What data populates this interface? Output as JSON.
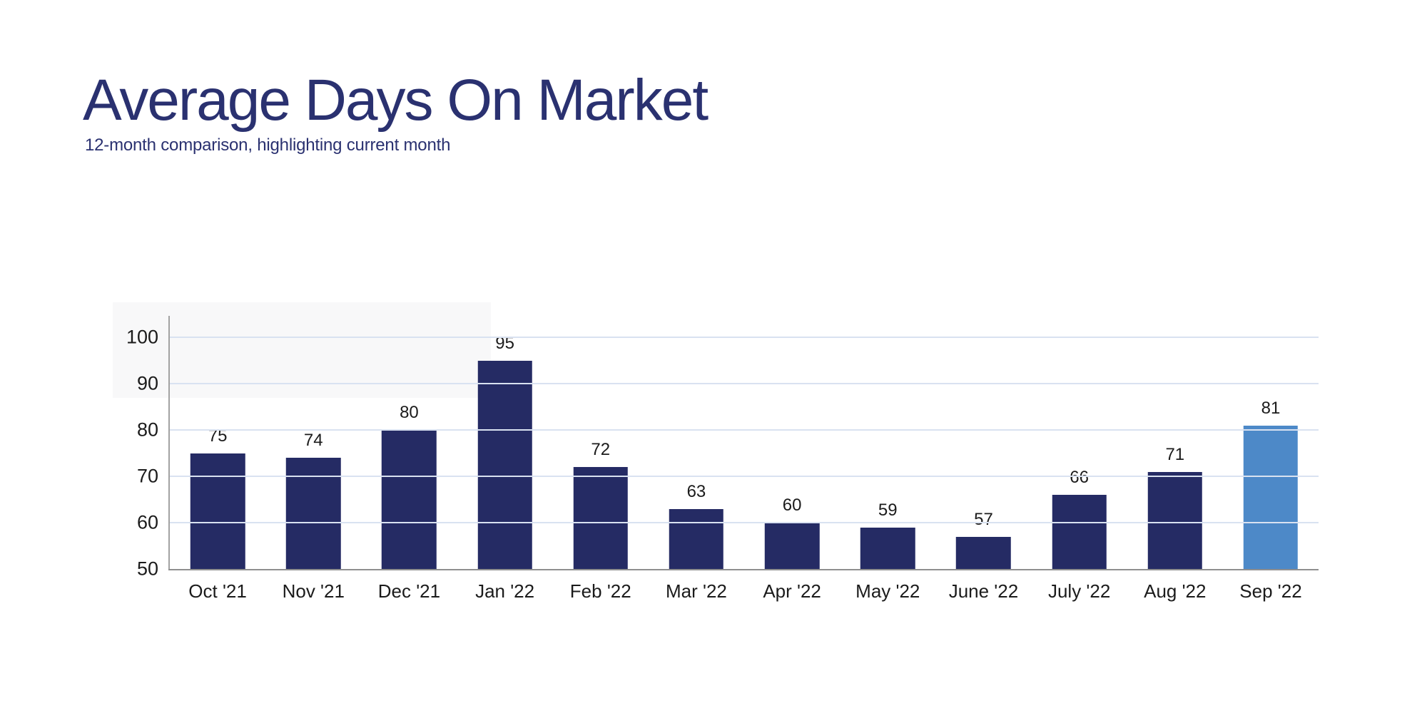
{
  "header": {
    "title": "Average Days On Market",
    "subtitle": "12-month comparison, highlighting current month"
  },
  "chart_data": {
    "type": "bar",
    "title": "Average Days On Market",
    "subtitle": "12-month comparison, highlighting current month",
    "categories": [
      "Oct '21",
      "Nov '21",
      "Dec '21",
      "Jan '22",
      "Feb '22",
      "Mar '22",
      "Apr '22",
      "May '22",
      "June '22",
      "July '22",
      "Aug '22",
      "Sep '22"
    ],
    "values": [
      75,
      74,
      80,
      95,
      72,
      63,
      60,
      59,
      57,
      66,
      71,
      81
    ],
    "highlight_index": 11,
    "highlight_meaning": "current month",
    "xlabel": "",
    "ylabel": "",
    "ylim": [
      50,
      100
    ],
    "yticks": [
      50,
      60,
      70,
      80,
      90,
      100
    ],
    "grid": "horizontal",
    "legend": "none",
    "data_labels": true,
    "colors": {
      "bar": "#252b64",
      "highlight_bar": "#4d89c8",
      "gridline": "#d9e2f1",
      "x_axis_line": "#8f8f8f",
      "y_axis_line": "#a2a2a2",
      "tick_text": "#1b1b1b",
      "title_text": "#2a3170"
    }
  }
}
